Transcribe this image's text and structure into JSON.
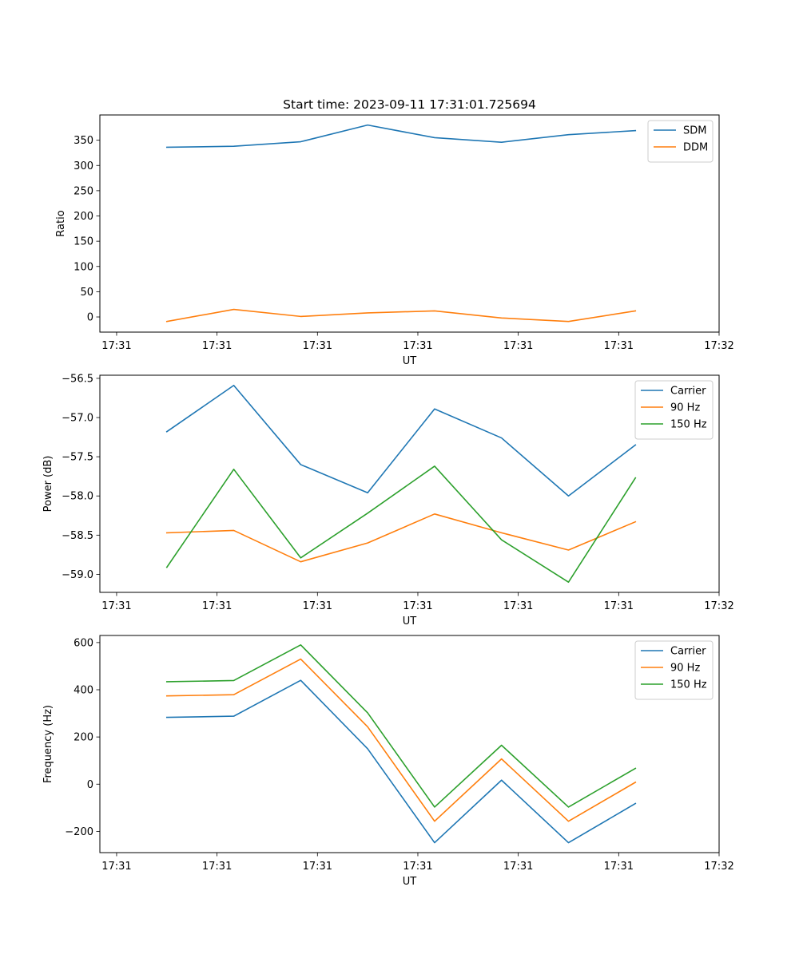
{
  "figure_title": "Start time: 2023-09-11 17:31:01.725694",
  "colors": {
    "blue": "#1f77b4",
    "orange": "#ff7f0e",
    "green": "#2ca02c"
  },
  "chart_data": [
    {
      "type": "line",
      "title": "Start time: 2023-09-11 17:31:01.725694",
      "xlabel": "UT",
      "ylabel": "Ratio",
      "x": [
        1,
        2,
        3,
        4,
        5,
        6,
        7,
        8
      ],
      "x_ticks": [
        0.25,
        1.75,
        3.25,
        4.75,
        6.25,
        7.75,
        9.25
      ],
      "x_tick_labels": [
        "17:31",
        "17:31",
        "17:31",
        "17:31",
        "17:31",
        "17:31",
        "17:32"
      ],
      "xlim": [
        0.0,
        9.25
      ],
      "ylim": [
        -30,
        400
      ],
      "y_ticks": [
        0,
        50,
        100,
        150,
        200,
        250,
        300,
        350
      ],
      "y_tick_labels": [
        "0",
        "50",
        "100",
        "150",
        "200",
        "250",
        "300",
        "350"
      ],
      "legend_position": "top-right",
      "grid": false,
      "series": [
        {
          "name": "SDM",
          "color": "#1f77b4",
          "values": [
            336,
            338,
            347,
            380,
            355,
            346,
            361,
            369
          ]
        },
        {
          "name": "DDM",
          "color": "#ff7f0e",
          "values": [
            -9,
            15,
            1,
            8,
            12,
            -2,
            -9,
            12
          ]
        }
      ]
    },
    {
      "type": "line",
      "xlabel": "UT",
      "ylabel": "Power (dB)",
      "x": [
        1,
        2,
        3,
        4,
        5,
        6,
        7,
        8
      ],
      "x_ticks": [
        0.25,
        1.75,
        3.25,
        4.75,
        6.25,
        7.75,
        9.25
      ],
      "x_tick_labels": [
        "17:31",
        "17:31",
        "17:31",
        "17:31",
        "17:31",
        "17:31",
        "17:32"
      ],
      "xlim": [
        0.0,
        9.25
      ],
      "ylim": [
        -59.23,
        -56.46
      ],
      "y_ticks": [
        -59.0,
        -58.5,
        -58.0,
        -57.5,
        -57.0,
        -56.5
      ],
      "y_tick_labels": [
        "−59.0",
        "−58.5",
        "−58.0",
        "−57.5",
        "−57.0",
        "−56.5"
      ],
      "legend_position": "top-right",
      "grid": false,
      "series": [
        {
          "name": "Carrier",
          "color": "#1f77b4",
          "values": [
            -57.18,
            -56.59,
            -57.6,
            -57.96,
            -56.89,
            -57.26,
            -58.0,
            -57.35
          ]
        },
        {
          "name": "90 Hz",
          "color": "#ff7f0e",
          "values": [
            -58.47,
            -58.44,
            -58.84,
            -58.6,
            -58.23,
            -58.47,
            -58.69,
            -58.33
          ]
        },
        {
          "name": "150 Hz",
          "color": "#2ca02c",
          "values": [
            -58.91,
            -57.66,
            -58.79,
            -58.22,
            -57.62,
            -58.56,
            -59.1,
            -57.77
          ]
        }
      ]
    },
    {
      "type": "line",
      "xlabel": "UT",
      "ylabel": "Frequency (Hz)",
      "x": [
        1,
        2,
        3,
        4,
        5,
        6,
        7,
        8
      ],
      "x_ticks": [
        0.25,
        1.75,
        3.25,
        4.75,
        6.25,
        7.75,
        9.25
      ],
      "x_tick_labels": [
        "17:31",
        "17:31",
        "17:31",
        "17:31",
        "17:31",
        "17:31",
        "17:32"
      ],
      "xlim": [
        0.0,
        9.25
      ],
      "ylim": [
        -290,
        630
      ],
      "y_ticks": [
        -200,
        0,
        200,
        400,
        600
      ],
      "y_tick_labels": [
        "−200",
        "0",
        "200",
        "400",
        "600"
      ],
      "legend_position": "top-right",
      "grid": false,
      "series": [
        {
          "name": "Carrier",
          "color": "#1f77b4",
          "values": [
            283,
            288,
            440,
            150,
            -248,
            17,
            -248,
            -82
          ]
        },
        {
          "name": "90 Hz",
          "color": "#ff7f0e",
          "values": [
            374,
            379,
            530,
            243,
            -157,
            107,
            -157,
            8
          ]
        },
        {
          "name": "150 Hz",
          "color": "#2ca02c",
          "values": [
            434,
            439,
            590,
            302,
            -97,
            165,
            -97,
            67
          ]
        }
      ]
    }
  ]
}
